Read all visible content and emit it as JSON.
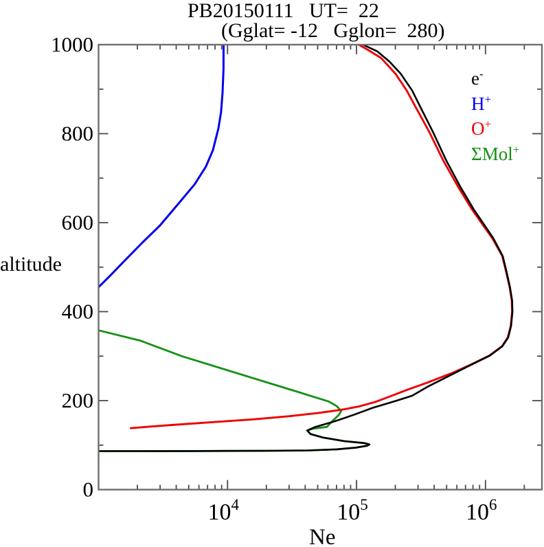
{
  "title": {
    "line1": "PB20150111   UT=  22",
    "line2": "(Gglat= -12   Gglon=  280)"
  },
  "axes": {
    "y_label": "altitude",
    "x_label": "Ne"
  },
  "legend": [
    {
      "name": "e",
      "sup": "-",
      "color": "#000000"
    },
    {
      "name": "H",
      "sup": "+",
      "color": "#0000ee"
    },
    {
      "name": "O",
      "sup": "+",
      "color": "#ee0000"
    },
    {
      "name": "ΣMol",
      "sup": "+",
      "color": "#149114"
    }
  ],
  "frame_color": "#6e6e6e",
  "tick_color": "#4a4a4a",
  "chart_data": {
    "type": "line",
    "title": "PB20150111 UT= 22 (Gglat= -12 Gglon= 280)",
    "xlabel": "Ne",
    "ylabel": "altitude",
    "x_scale": "log",
    "xlim": [
      1000,
      2740000
    ],
    "ylim": [
      0,
      1000
    ],
    "grid": false,
    "legend_position": "upper right inside",
    "x_tick_labels": [
      {
        "base": "10",
        "exp": "4",
        "value": 10000
      },
      {
        "base": "10",
        "exp": "5",
        "value": 100000
      },
      {
        "base": "10",
        "exp": "6",
        "value": 1000000
      }
    ],
    "y_tick_labels": [
      {
        "text": "0",
        "value": 0
      },
      {
        "text": "200",
        "value": 200
      },
      {
        "text": "400",
        "value": 400
      },
      {
        "text": "600",
        "value": 600
      },
      {
        "text": "800",
        "value": 800
      },
      {
        "text": "1000",
        "value": 1000
      }
    ],
    "x_ticks_major": [
      10000,
      100000,
      1000000
    ],
    "x_ticks_minor": [
      2000,
      3000,
      4000,
      5000,
      6000,
      7000,
      8000,
      9000,
      20000,
      30000,
      40000,
      50000,
      60000,
      70000,
      80000,
      90000,
      200000,
      300000,
      400000,
      500000,
      600000,
      700000,
      800000,
      900000,
      2000000
    ],
    "y_ticks_major": [
      200,
      400,
      600,
      800
    ],
    "y_ticks_minor": [
      100,
      300,
      500,
      700,
      900
    ],
    "series": [
      {
        "name": "ΣMol+",
        "color": "#149114",
        "width": 2.8,
        "points": [
          [
            1000,
            86.5
          ],
          [
            5000,
            86.7
          ],
          [
            10000,
            86.9
          ],
          [
            20000,
            87.2
          ],
          [
            42000,
            88
          ],
          [
            70000,
            90.5
          ],
          [
            100000,
            94.5
          ],
          [
            120000,
            98.5
          ],
          [
            126000,
            101.5
          ],
          [
            115000,
            104.5
          ],
          [
            80000,
            109
          ],
          [
            55000,
            117
          ],
          [
            44000,
            125
          ],
          [
            41500,
            133
          ],
          [
            46000,
            137
          ],
          [
            59000,
            141
          ],
          [
            62000,
            148
          ],
          [
            66000,
            156
          ],
          [
            73000,
            168
          ],
          [
            76000,
            177
          ],
          [
            70000,
            188
          ],
          [
            61000,
            198
          ],
          [
            34700,
            220
          ],
          [
            16000,
            250
          ],
          [
            4420,
            300
          ],
          [
            2100,
            335
          ],
          [
            1000,
            358
          ]
        ]
      },
      {
        "name": "H+",
        "color": "#0000ee",
        "width": 3,
        "points": [
          [
            1000,
            455
          ],
          [
            1250,
            483
          ],
          [
            1600,
            515
          ],
          [
            2200,
            556
          ],
          [
            3000,
            594
          ],
          [
            4200,
            644
          ],
          [
            5550,
            686
          ],
          [
            6800,
            726
          ],
          [
            7700,
            763
          ],
          [
            8500,
            812
          ],
          [
            8900,
            848
          ],
          [
            9150,
            892
          ],
          [
            9300,
            945
          ],
          [
            9320,
            1000
          ]
        ]
      },
      {
        "name": "O+",
        "color": "#ee0000",
        "width": 2.9,
        "points": [
          [
            1780,
            138
          ],
          [
            2600,
            142
          ],
          [
            4000,
            146
          ],
          [
            8000,
            152
          ],
          [
            16000,
            158
          ],
          [
            30000,
            165
          ],
          [
            50000,
            172
          ],
          [
            75000,
            179
          ],
          [
            105000,
            187
          ],
          [
            140000,
            197
          ],
          [
            180000,
            209
          ],
          [
            240000,
            223
          ],
          [
            350000,
            240
          ],
          [
            550000,
            262
          ],
          [
            770000,
            281
          ],
          [
            1070000,
            301
          ],
          [
            1340000,
            322
          ],
          [
            1490000,
            342
          ],
          [
            1570000,
            368
          ],
          [
            1610000,
            400
          ],
          [
            1600000,
            425
          ],
          [
            1540000,
            455
          ],
          [
            1440000,
            492
          ],
          [
            1350000,
            525
          ],
          [
            1130000,
            565
          ],
          [
            970000,
            592
          ],
          [
            785000,
            630
          ],
          [
            615000,
            680
          ],
          [
            470000,
            740
          ],
          [
            365000,
            805
          ],
          [
            285000,
            862
          ],
          [
            245000,
            897
          ],
          [
            200000,
            935
          ],
          [
            155000,
            970
          ],
          [
            120000,
            990
          ],
          [
            104000,
            1000
          ]
        ]
      },
      {
        "name": "e-",
        "color": "#000000",
        "width": 2.6,
        "points": [
          [
            1000,
            86.5
          ],
          [
            5000,
            86.7
          ],
          [
            10000,
            86.9
          ],
          [
            20000,
            87.2
          ],
          [
            42000,
            88
          ],
          [
            70000,
            90.5
          ],
          [
            100000,
            94.5
          ],
          [
            120000,
            98.5
          ],
          [
            126000,
            101.5
          ],
          [
            115000,
            104.5
          ],
          [
            80000,
            109
          ],
          [
            55000,
            117
          ],
          [
            44000,
            125
          ],
          [
            41500,
            133
          ],
          [
            48000,
            141
          ],
          [
            67000,
            153
          ],
          [
            95000,
            168
          ],
          [
            134000,
            184
          ],
          [
            200000,
            199
          ],
          [
            270000,
            211
          ],
          [
            360000,
            232
          ],
          [
            560000,
            260
          ],
          [
            780000,
            281
          ],
          [
            1080000,
            301
          ],
          [
            1350000,
            322
          ],
          [
            1500000,
            342
          ],
          [
            1580000,
            368
          ],
          [
            1620000,
            400
          ],
          [
            1610000,
            425
          ],
          [
            1550000,
            455
          ],
          [
            1450000,
            492
          ],
          [
            1360000,
            525
          ],
          [
            1150000,
            565
          ],
          [
            995000,
            592
          ],
          [
            810000,
            630
          ],
          [
            640000,
            680
          ],
          [
            496000,
            740
          ],
          [
            390000,
            805
          ],
          [
            310000,
            862
          ],
          [
            270000,
            897
          ],
          [
            220000,
            935
          ],
          [
            180000,
            962
          ],
          [
            145000,
            985
          ],
          [
            112000,
            1000
          ]
        ]
      }
    ]
  }
}
